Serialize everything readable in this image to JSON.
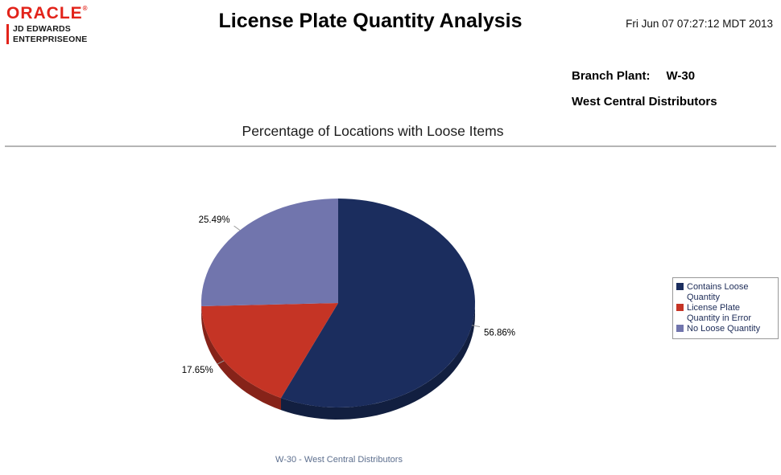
{
  "header": {
    "logo": {
      "oracle": "ORACLE",
      "registered": "®",
      "brand_line1": "JD EDWARDS",
      "brand_line2": "ENTERPRISEONE",
      "brand_color": "#e2231a"
    },
    "title": "License Plate Quantity Analysis",
    "timestamp": "Fri Jun 07 07:27:12 MDT 2013"
  },
  "report_info": {
    "branch_plant_label": "Branch Plant:",
    "branch_plant_value": "W-30",
    "branch_plant_name": "West Central Distributors"
  },
  "chart_data": {
    "type": "pie",
    "title": "Percentage of Locations with Loose Items",
    "footer": "W-30 - West Central Distributors",
    "legend_position": "right",
    "start_angle_deg": 0,
    "direction": "clockwise",
    "slices": [
      {
        "label": "Contains Loose Quantity",
        "value": 56.86,
        "display": "56.86%",
        "color": "#1b2d5e"
      },
      {
        "label": "License Plate Quantity in Error",
        "value": 17.65,
        "display": "17.65%",
        "color": "#c53425"
      },
      {
        "label": "No Loose Quantity",
        "value": 25.49,
        "display": "25.49%",
        "color": "#7175ad"
      }
    ],
    "colors": {
      "label_text": "#000000",
      "leader_line": "#999999",
      "footer_text": "#5d6f8e",
      "legend_border": "#999999",
      "legend_text": "#1c2b57"
    }
  }
}
